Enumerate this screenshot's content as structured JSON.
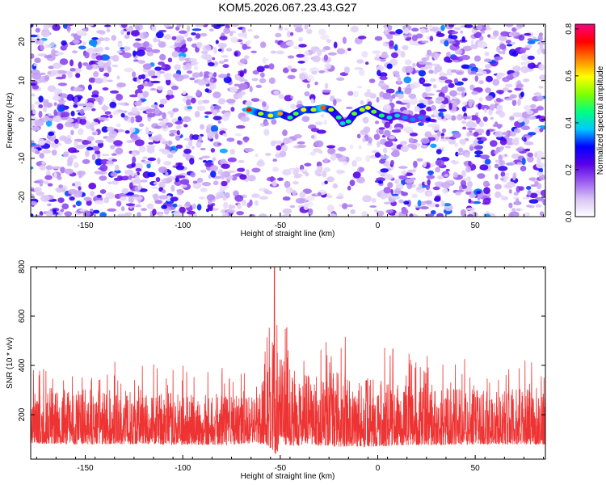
{
  "title": "KOM5.2026.067.23.43.G27",
  "chart_data": [
    {
      "type": "heatmap",
      "name": "spectrogram",
      "xlabel": "Height of straight line (km)",
      "ylabel": "Frequency (Hz)",
      "xlim": [
        -178,
        86
      ],
      "ylim": [
        -25,
        24.5
      ],
      "xticks": [
        -150,
        -100,
        -50,
        0,
        50
      ],
      "yticks": [
        -20,
        -10,
        0,
        10,
        20
      ],
      "colorbar": {
        "label": "Normalized spectral amplitude",
        "range": [
          0.0,
          0.82
        ],
        "ticks": [
          "0.0",
          "0.2",
          "0.4",
          "0.6",
          "0.8"
        ],
        "colors": [
          "#ffffff",
          "#d9c4f5",
          "#9b5cf0",
          "#5a00e8",
          "#0000ff",
          "#00c8ff",
          "#00ff80",
          "#80ff00",
          "#ffff00",
          "#ff8000",
          "#ff0000",
          "#ff0080"
        ]
      },
      "signal_track": {
        "x": [
          -66,
          -60,
          -55,
          -50,
          -45,
          -42,
          -38,
          -33,
          -28,
          -24,
          -20,
          -18,
          -15,
          -12,
          -8,
          -5,
          -2,
          2,
          6,
          10,
          14,
          18,
          22,
          26
        ],
        "y": [
          2.5,
          1.5,
          1,
          1.5,
          0.5,
          1.5,
          2.5,
          2.5,
          3,
          2.5,
          0.5,
          -1,
          -0.5,
          1.5,
          2.5,
          3,
          2,
          1,
          0.5,
          1,
          0.5,
          0,
          0.5,
          0
        ],
        "amplitude": [
          0.75,
          0.55,
          0.6,
          0.65,
          0.45,
          0.5,
          0.6,
          0.55,
          0.7,
          0.55,
          0.45,
          0.4,
          0.45,
          0.5,
          0.55,
          0.6,
          0.5,
          0.45,
          0.4,
          0.4,
          0.35,
          0.35,
          0.35,
          0.3
        ]
      },
      "quiet_band": [
        -66,
        0
      ]
    },
    {
      "type": "line",
      "name": "snr",
      "xlabel": "Height of straight line (km)",
      "ylabel": "SNR (10 * v/v)",
      "xlim": [
        -178,
        86
      ],
      "ylim": [
        20,
        800
      ],
      "xticks": [
        -150,
        -100,
        -50,
        0,
        50
      ],
      "yticks": [
        200,
        400,
        600,
        800
      ],
      "color": "#ee3333",
      "envelope": {
        "x": [
          -178,
          -160,
          -140,
          -120,
          -100,
          -80,
          -70,
          -62,
          -58,
          -55,
          -52,
          -50,
          -47,
          -44,
          -40,
          -35,
          -30,
          -25,
          -20,
          -15,
          -10,
          -5,
          0,
          5,
          10,
          20,
          30,
          40,
          50,
          60,
          70,
          86
        ],
        "base": [
          120,
          120,
          120,
          120,
          115,
          115,
          115,
          120,
          150,
          160,
          110,
          150,
          140,
          130,
          130,
          130,
          125,
          125,
          125,
          125,
          120,
          120,
          120,
          120,
          120,
          120,
          120,
          120,
          120,
          120,
          120,
          120
        ],
        "spread": [
          140,
          160,
          160,
          150,
          150,
          150,
          140,
          130,
          300,
          380,
          320,
          260,
          240,
          220,
          210,
          200,
          200,
          210,
          220,
          210,
          200,
          200,
          190,
          190,
          180,
          170,
          170,
          165,
          160,
          160,
          160,
          160
        ]
      },
      "peak": {
        "x": -53,
        "y": 800
      }
    }
  ]
}
